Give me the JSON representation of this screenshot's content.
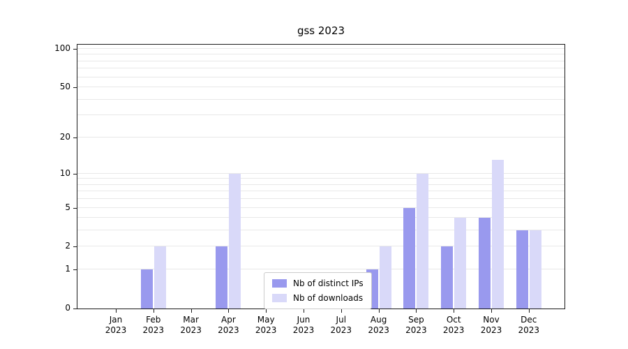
{
  "chart_data": {
    "type": "bar",
    "title": "gss 2023",
    "categories": [
      "Jan",
      "Feb",
      "Mar",
      "Apr",
      "May",
      "Jun",
      "Jul",
      "Aug",
      "Sep",
      "Oct",
      "Nov",
      "Dec"
    ],
    "year": "2023",
    "series": [
      {
        "name": "Nb of distinct IPs",
        "color": "#9999ee",
        "values": [
          0,
          1,
          0,
          2,
          0,
          0,
          0,
          1,
          5,
          2,
          4,
          3
        ]
      },
      {
        "name": "Nb of downloads",
        "color": "#d9d9f9",
        "values": [
          0,
          2,
          0,
          10,
          0,
          0,
          0,
          2,
          10,
          4,
          13,
          3
        ]
      }
    ],
    "yscale": "log1p",
    "ylim": [
      0,
      100
    ],
    "ytick_values": [
      0,
      1,
      2,
      5,
      10,
      20,
      50,
      100
    ],
    "ytick_labels": [
      "0",
      "1",
      "2",
      "5",
      "10",
      "20",
      "50",
      "100"
    ],
    "gridline_values": [
      1,
      2,
      3,
      4,
      5,
      6,
      7,
      8,
      9,
      10,
      20,
      30,
      40,
      50,
      60,
      70,
      80,
      90,
      100
    ],
    "grid": true,
    "legend": {
      "position": "lower center",
      "labels": [
        "Nb of distinct IPs",
        "Nb of downloads"
      ]
    }
  }
}
